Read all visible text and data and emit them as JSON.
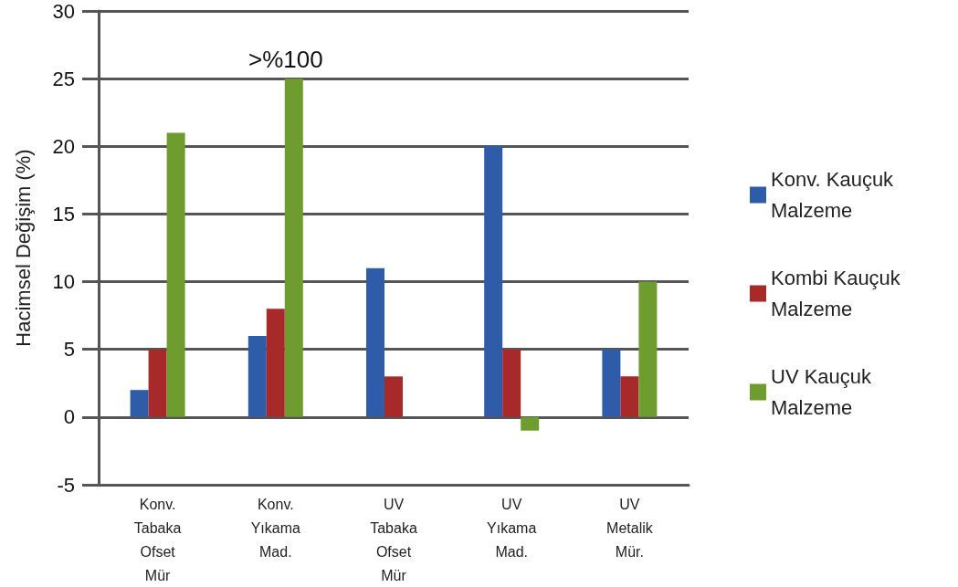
{
  "chart_data": {
    "type": "bar",
    "ylabel": "Hacimsel Değişim (%)",
    "categories": [
      "Konv.\nTabaka\nOfset\nMür",
      "Konv.\nYıkama\nMad.",
      "UV\nTabaka\nOfset\nMür",
      "UV\nYıkama\nMad.",
      "UV\nMetalik\nMür."
    ],
    "series": [
      {
        "name": "Konv. Kauçuk Malzeme",
        "color": "#2e5ca8",
        "values": [
          2,
          6,
          11,
          20,
          5
        ]
      },
      {
        "name": "Kombi Kauçuk Malzeme",
        "color": "#a8292a",
        "values": [
          5,
          8,
          3,
          5,
          3
        ]
      },
      {
        "name": "UV Kauçuk Malzeme",
        "color": "#6f9c2e",
        "values": [
          21,
          25,
          null,
          -1,
          10
        ]
      }
    ],
    "ylim": [
      -5,
      30
    ],
    "yticks": [
      -5,
      0,
      5,
      10,
      15,
      20,
      25,
      30
    ],
    "grid": "y",
    "legend": "right",
    "annotations": [
      ">%100"
    ]
  }
}
